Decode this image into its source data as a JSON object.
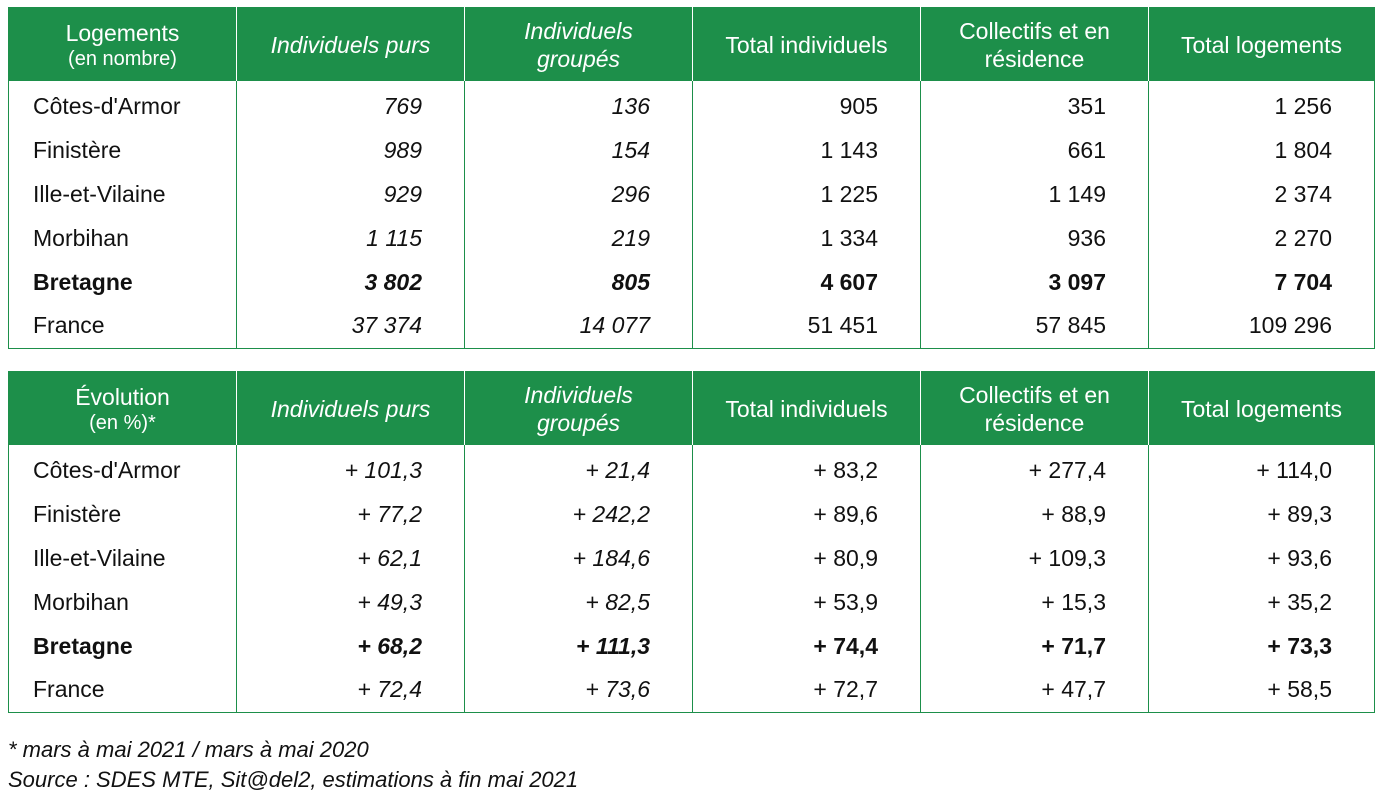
{
  "table_logements": {
    "header": {
      "col0_line1": "Logements",
      "col0_line2": "(en nombre)",
      "col1": "Individuels purs",
      "col2_line1": "Individuels",
      "col2_line2": "groupés",
      "col3": "Total individuels",
      "col4_line1": "Collectifs et en",
      "col4_line2": "résidence",
      "col5": "Total logements"
    },
    "rows": [
      {
        "label": "Côtes-d'Armor",
        "ind_purs": "769",
        "ind_groupes": "136",
        "total_ind": "905",
        "collectifs": "351",
        "total_log": "1 256"
      },
      {
        "label": "Finistère",
        "ind_purs": "989",
        "ind_groupes": "154",
        "total_ind": "1 143",
        "collectifs": "661",
        "total_log": "1 804"
      },
      {
        "label": "Ille-et-Vilaine",
        "ind_purs": "929",
        "ind_groupes": "296",
        "total_ind": "1 225",
        "collectifs": "1 149",
        "total_log": "2 374"
      },
      {
        "label": "Morbihan",
        "ind_purs": "1 115",
        "ind_groupes": "219",
        "total_ind": "1 334",
        "collectifs": "936",
        "total_log": "2 270"
      },
      {
        "label": "Bretagne",
        "ind_purs": "3 802",
        "ind_groupes": "805",
        "total_ind": "4 607",
        "collectifs": "3 097",
        "total_log": "7 704"
      },
      {
        "label": "France",
        "ind_purs": "37 374",
        "ind_groupes": "14 077",
        "total_ind": "51 451",
        "collectifs": "57 845",
        "total_log": "109 296"
      }
    ]
  },
  "table_evolution": {
    "header": {
      "col0_line1": "Évolution",
      "col0_line2": "(en %)*",
      "col1": "Individuels purs",
      "col2_line1": "Individuels",
      "col2_line2": "groupés",
      "col3": "Total individuels",
      "col4_line1": "Collectifs et en",
      "col4_line2": "résidence",
      "col5": "Total logements"
    },
    "rows": [
      {
        "label": "Côtes-d'Armor",
        "ind_purs": "+ 101,3",
        "ind_groupes": "+ 21,4",
        "total_ind": "+ 83,2",
        "collectifs": "+ 277,4",
        "total_log": "+ 114,0"
      },
      {
        "label": "Finistère",
        "ind_purs": "+ 77,2",
        "ind_groupes": "+ 242,2",
        "total_ind": "+ 89,6",
        "collectifs": "+ 88,9",
        "total_log": "+ 89,3"
      },
      {
        "label": "Ille-et-Vilaine",
        "ind_purs": "+ 62,1",
        "ind_groupes": "+ 184,6",
        "total_ind": "+ 80,9",
        "collectifs": "+ 109,3",
        "total_log": "+ 93,6"
      },
      {
        "label": "Morbihan",
        "ind_purs": "+ 49,3",
        "ind_groupes": "+ 82,5",
        "total_ind": "+ 53,9",
        "collectifs": "+ 15,3",
        "total_log": "+ 35,2"
      },
      {
        "label": "Bretagne",
        "ind_purs": "+ 68,2",
        "ind_groupes": "+ 111,3",
        "total_ind": "+ 74,4",
        "collectifs": "+ 71,7",
        "total_log": "+ 73,3"
      },
      {
        "label": "France",
        "ind_purs": "+ 72,4",
        "ind_groupes": "+ 73,6",
        "total_ind": "+ 72,7",
        "collectifs": "+ 47,7",
        "total_log": "+ 58,5"
      }
    ]
  },
  "notes": {
    "period": "* mars à mai 2021 / mars à mai 2020",
    "source": "Source : SDES MTE, Sit@del2, estimations à fin mai 2021"
  },
  "colors": {
    "header_bg": "#1d8f4a",
    "header_text": "#ffffff",
    "border": "#1d8f4a"
  }
}
